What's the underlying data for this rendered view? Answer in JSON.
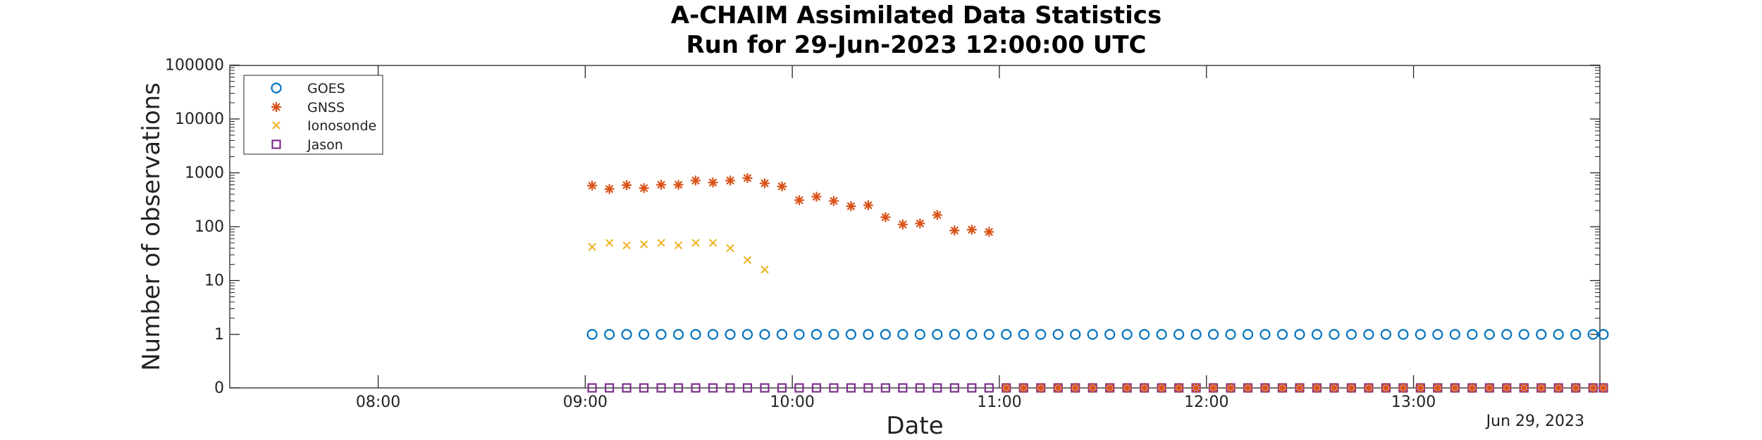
{
  "chart_data": {
    "type": "scatter",
    "title": "A-CHAIM Assimilated Data Statistics",
    "subtitle": "Run for 29-Jun-2023 12:00:00 UTC",
    "xlabel": "Date",
    "ylabel": "Number of observations",
    "date_note": "Jun 29, 2023",
    "yscale": "log (0 plotted at bottom)",
    "xlim": [
      "07:17",
      "13:55"
    ],
    "ylim": [
      0,
      100000
    ],
    "x_ticks": [
      "08:00",
      "09:00",
      "10:00",
      "11:00",
      "12:00",
      "13:00"
    ],
    "y_ticks": [
      "0",
      "1",
      "10",
      "100",
      "1000",
      "10000",
      "100000"
    ],
    "legend": {
      "placement": "top-left"
    },
    "series": [
      {
        "name": "GOES",
        "marker": "circle",
        "color": "#0072BD",
        "x": [
          "09:02",
          "09:07",
          "09:12",
          "09:17",
          "09:22",
          "09:27",
          "09:32",
          "09:37",
          "09:42",
          "09:47",
          "09:52",
          "09:57",
          "10:02",
          "10:07",
          "10:12",
          "10:17",
          "10:22",
          "10:27",
          "10:32",
          "10:37",
          "10:42",
          "10:47",
          "10:52",
          "10:57",
          "11:02",
          "11:07",
          "11:12",
          "11:17",
          "11:22",
          "11:27",
          "11:32",
          "11:37",
          "11:42",
          "11:47",
          "11:52",
          "11:57",
          "12:02",
          "12:07",
          "12:12",
          "12:17",
          "12:22",
          "12:27",
          "12:32",
          "12:37",
          "12:42",
          "12:47",
          "12:52",
          "12:57",
          "13:02",
          "13:07",
          "13:12",
          "13:17",
          "13:22",
          "13:27",
          "13:32",
          "13:37",
          "13:42",
          "13:47",
          "13:52",
          "13:55"
        ],
        "values": [
          1,
          1,
          1,
          1,
          1,
          1,
          1,
          1,
          1,
          1,
          1,
          1,
          1,
          1,
          1,
          1,
          1,
          1,
          1,
          1,
          1,
          1,
          1,
          1,
          1,
          1,
          1,
          1,
          1,
          1,
          1,
          1,
          1,
          1,
          1,
          1,
          1,
          1,
          1,
          1,
          1,
          1,
          1,
          1,
          1,
          1,
          1,
          1,
          1,
          1,
          1,
          1,
          1,
          1,
          1,
          1,
          1,
          1,
          1,
          1
        ]
      },
      {
        "name": "GNSS",
        "marker": "asterisk",
        "color": "#D95319",
        "x": [
          "09:02",
          "09:07",
          "09:12",
          "09:17",
          "09:22",
          "09:27",
          "09:32",
          "09:37",
          "09:42",
          "09:47",
          "09:52",
          "09:57",
          "10:02",
          "10:07",
          "10:12",
          "10:17",
          "10:22",
          "10:27",
          "10:32",
          "10:37",
          "10:42",
          "10:47",
          "10:52",
          "10:57"
        ],
        "values": [
          580,
          500,
          590,
          520,
          600,
          600,
          720,
          660,
          720,
          800,
          640,
          560,
          310,
          360,
          300,
          240,
          250,
          150,
          110,
          115,
          165,
          85,
          88,
          80
        ]
      },
      {
        "name": "Ionosonde",
        "marker": "x",
        "color": "#EDB120",
        "x": [
          "09:02",
          "09:07",
          "09:12",
          "09:17",
          "09:22",
          "09:27",
          "09:32",
          "09:37",
          "09:42",
          "09:47",
          "09:52"
        ],
        "values": [
          42,
          50,
          45,
          47,
          50,
          45,
          50,
          50,
          40,
          24,
          16
        ]
      },
      {
        "name": "Jason",
        "marker": "square",
        "color": "#7E2F8E",
        "x": [
          "09:02",
          "09:07",
          "09:12",
          "09:17",
          "09:22",
          "09:27",
          "09:32",
          "09:37",
          "09:42",
          "09:47",
          "09:52",
          "09:57",
          "10:02",
          "10:07",
          "10:12",
          "10:17",
          "10:22",
          "10:27",
          "10:32",
          "10:37",
          "10:42",
          "10:47",
          "10:52",
          "10:57",
          "11:02",
          "11:07",
          "11:12",
          "11:17",
          "11:22",
          "11:27",
          "11:32",
          "11:37",
          "11:42",
          "11:47",
          "11:52",
          "11:57",
          "12:02",
          "12:07",
          "12:12",
          "12:17",
          "12:22",
          "12:27",
          "12:32",
          "12:37",
          "12:42",
          "12:47",
          "12:52",
          "12:57",
          "13:02",
          "13:07",
          "13:12",
          "13:17",
          "13:22",
          "13:27",
          "13:32",
          "13:37",
          "13:42",
          "13:47",
          "13:52",
          "13:55"
        ],
        "values": [
          0,
          0,
          0,
          0,
          0,
          0,
          0,
          0,
          0,
          0,
          0,
          0,
          0,
          0,
          0,
          0,
          0,
          0,
          0,
          0,
          0,
          0,
          0,
          0,
          0,
          0,
          0,
          0,
          0,
          0,
          0,
          0,
          0,
          0,
          0,
          0,
          0,
          0,
          0,
          0,
          0,
          0,
          0,
          0,
          0,
          0,
          0,
          0,
          0,
          0,
          0,
          0,
          0,
          0,
          0,
          0,
          0,
          0,
          0,
          0
        ]
      }
    ]
  }
}
